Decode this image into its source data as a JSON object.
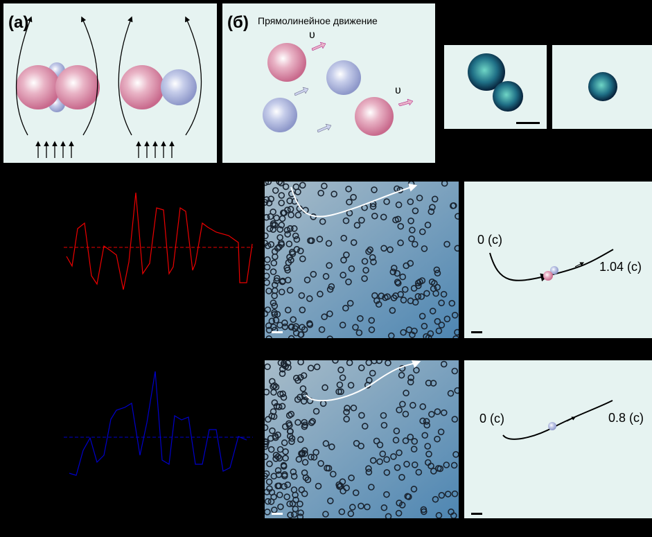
{
  "panel_a": {
    "label": "(а)"
  },
  "panel_b": {
    "label": "(б)",
    "title": "Прямолинейное движение",
    "velocity_labels": [
      "υ",
      "υ"
    ]
  },
  "rows": [
    {
      "start": "0 (с)",
      "end": "1.04 (с)"
    },
    {
      "start": "0 (с)",
      "end": "0.8 (с)"
    }
  ]
}
